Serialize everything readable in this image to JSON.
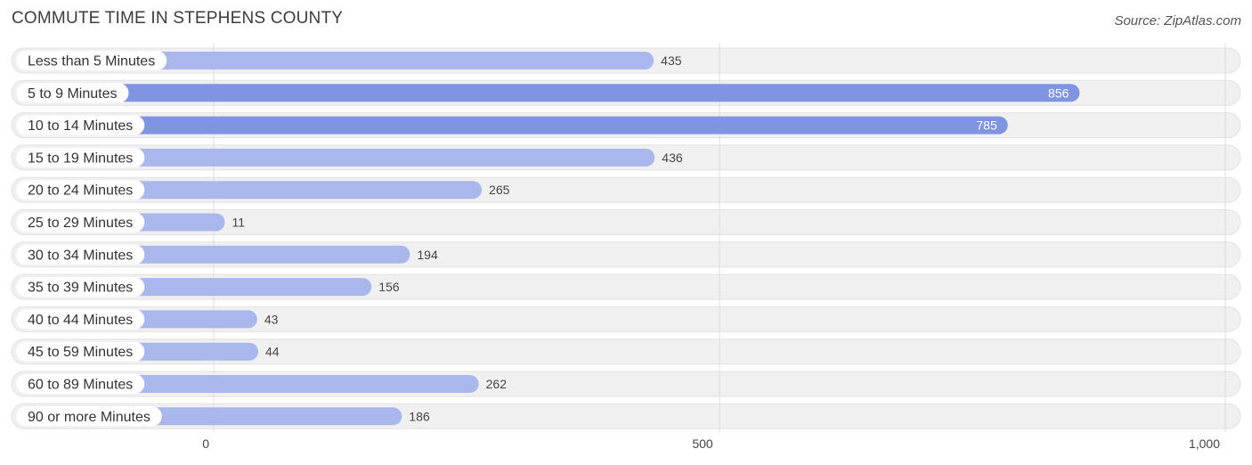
{
  "header": {
    "title": "COMMUTE TIME IN STEPHENS COUNTY",
    "source": "Source: ZipAtlas.com"
  },
  "colors": {
    "bar_strong": "#7f95e2",
    "bar_light": "#aab7ec",
    "track": "#f0f0f0",
    "track_border": "#e2e2e2",
    "grid": "#dddddd"
  },
  "chart_data": {
    "type": "bar",
    "orientation": "horizontal",
    "title": "COMMUTE TIME IN STEPHENS COUNTY",
    "categories": [
      "Less than 5 Minutes",
      "5 to 9 Minutes",
      "10 to 14 Minutes",
      "15 to 19 Minutes",
      "20 to 24 Minutes",
      "25 to 29 Minutes",
      "30 to 34 Minutes",
      "35 to 39 Minutes",
      "40 to 44 Minutes",
      "45 to 59 Minutes",
      "60 to 89 Minutes",
      "90 or more Minutes"
    ],
    "values": [
      435,
      856,
      785,
      436,
      265,
      11,
      194,
      156,
      43,
      44,
      262,
      186
    ],
    "value_labels": [
      "435",
      "856",
      "785",
      "436",
      "265",
      "11",
      "194",
      "156",
      "43",
      "44",
      "262",
      "186"
    ],
    "xlim": [
      0,
      1000
    ],
    "xticks": [
      0,
      500,
      1000
    ],
    "xtick_labels": [
      "0",
      "500",
      "1,000"
    ],
    "xlabel": "",
    "ylabel": "",
    "grid": true
  }
}
